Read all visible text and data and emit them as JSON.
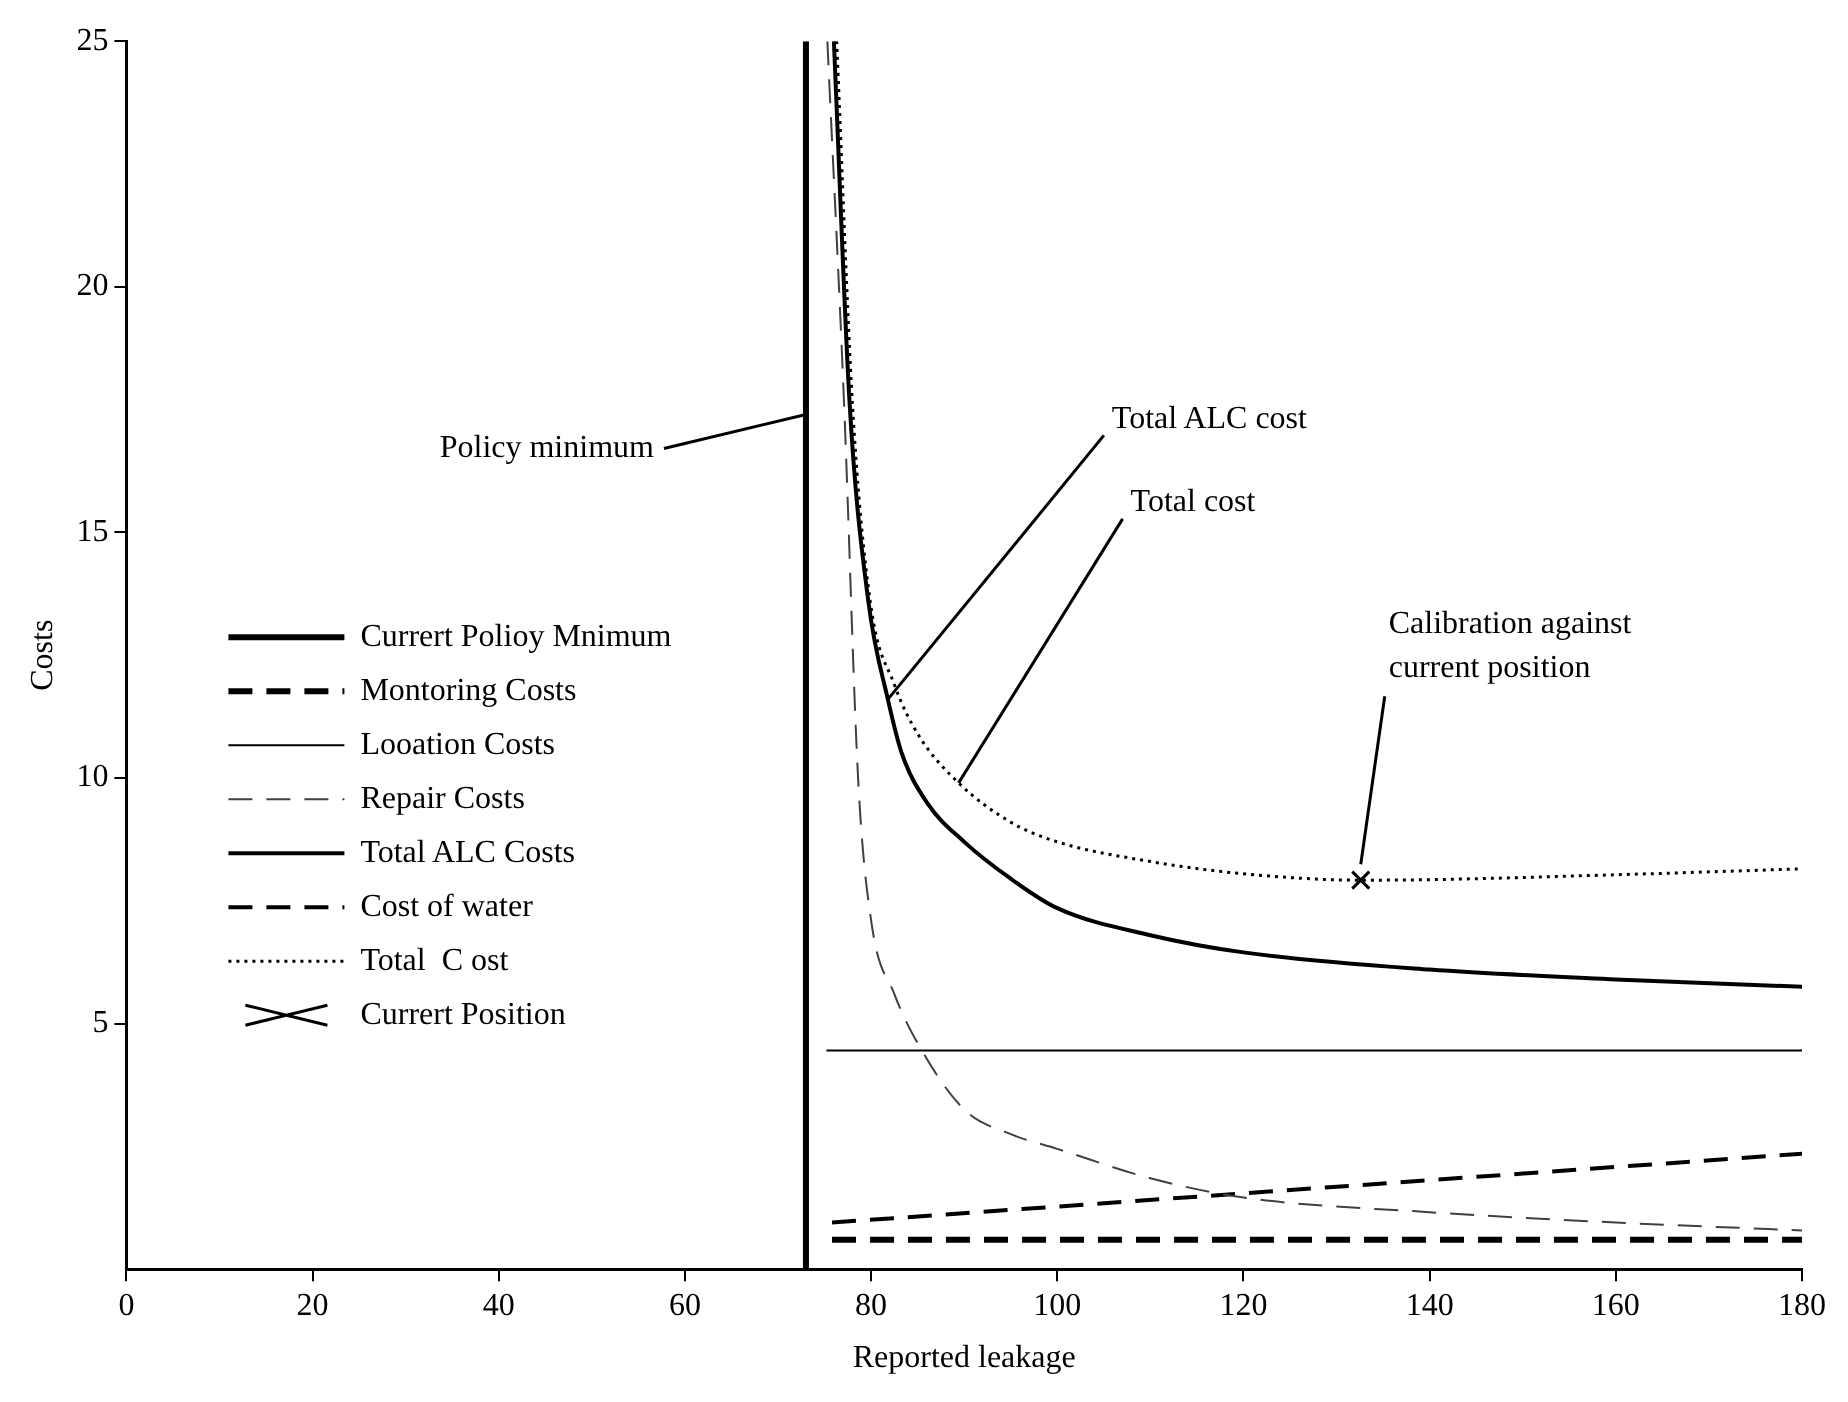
{
  "chart_data": {
    "type": "line",
    "xlabel": "Reported leakage",
    "ylabel": "Costs",
    "xlim": [
      0,
      180
    ],
    "ylim": [
      0,
      25
    ],
    "xticks": [
      0,
      20,
      40,
      60,
      80,
      100,
      120,
      140,
      160,
      180
    ],
    "yticks": [
      5,
      10,
      15,
      20,
      25
    ],
    "grid": false,
    "legend": "bottom left",
    "marker": "none",
    "series": [
      {
        "name": "Currert Polioy Mnimum",
        "color": "#000000",
        "line_style": "solid",
        "x": [
          73,
          73
        ],
        "values": [
          0,
          25
        ]
      },
      {
        "name": "Montoring Costs",
        "color": "#000000",
        "line_style": "dashed",
        "x": [
          75.8,
          180
        ],
        "values": [
          0.6,
          0.6
        ]
      },
      {
        "name": "Looation Costs",
        "color": "#000000",
        "line_style": "solid",
        "x": [
          75.2,
          180
        ],
        "values": [
          4.45,
          4.45
        ]
      },
      {
        "name": "Repair Costs",
        "color": "#404040",
        "line_style": "dashed",
        "x": [
          75.3,
          77.1,
          78.6,
          80,
          82.5,
          85,
          90,
          95,
          100,
          110,
          120,
          140,
          160,
          180
        ],
        "values": [
          25,
          17.6,
          10,
          7.1,
          5.6,
          4.6,
          3.25,
          2.75,
          2.45,
          1.85,
          1.46,
          1.16,
          0.95,
          0.79
        ]
      },
      {
        "name": "Total ALC Costs",
        "color": "#000000",
        "line_style": "solid",
        "x": [
          76,
          77.7,
          79.7,
          81.8,
          83.3,
          86,
          90,
          95,
          100,
          110,
          120,
          140,
          160,
          180
        ],
        "values": [
          25,
          17.6,
          13.6,
          11.6,
          10.5,
          9.5,
          8.7,
          7.95,
          7.35,
          6.8,
          6.45,
          6.1,
          5.9,
          5.75
        ]
      },
      {
        "name": "Cost of water",
        "color": "#000000",
        "line_style": "dashed",
        "x": [
          75.8,
          180
        ],
        "values": [
          0.95,
          2.35
        ]
      },
      {
        "name": "Total  C ost",
        "color": "#000000",
        "line_style": "dotted",
        "x": [
          76.3,
          78,
          79.9,
          82.5,
          85,
          89.4,
          95,
          100,
          110,
          120,
          132.6,
          140,
          160,
          180
        ],
        "values": [
          25,
          17.6,
          13.6,
          11.9,
          10.9,
          9.9,
          9.1,
          8.7,
          8.3,
          8.05,
          7.92,
          7.93,
          8.03,
          8.15
        ]
      },
      {
        "name": "Currert Position",
        "type": "scatter",
        "color": "#000000",
        "marker": "cross",
        "x": [
          132.6
        ],
        "values": [
          7.92
        ]
      }
    ],
    "annotations": [
      {
        "text": "Policy minimum",
        "x": 73,
        "y": 17.4
      },
      {
        "text": "Total ALC cost",
        "x": 81.8,
        "y": 11.6
      },
      {
        "text": "Total cost",
        "x": 89.4,
        "y": 9.9
      },
      {
        "text": "Calibration against\ncurrent position",
        "x": 132.6,
        "y": 7.92
      }
    ]
  }
}
